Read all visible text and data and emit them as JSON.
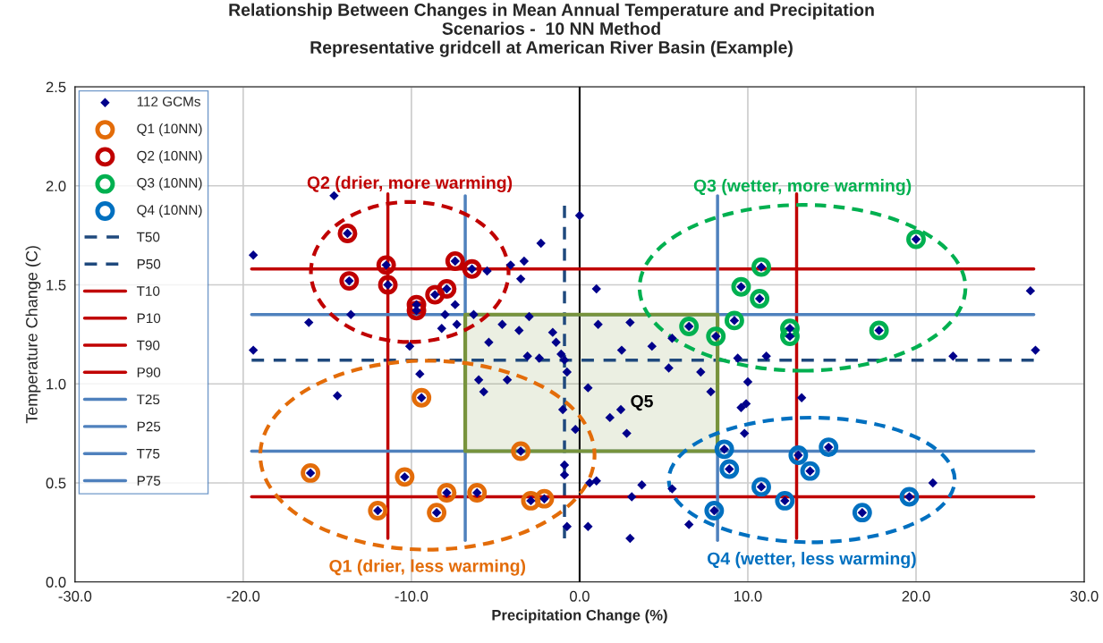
{
  "chart_data": {
    "type": "scatter",
    "title": "Relationship Between Changes in Mean Annual Temperature and Precipitation\nScenarios -  10 NN Method\nRepresentative gridcell at American River Basin (Example)",
    "xlabel": "Precipitation Change (%)",
    "ylabel": "Temperature Change (C)",
    "xlim": [
      -30,
      30
    ],
    "ylim": [
      0,
      2.5
    ],
    "xticks": [
      {
        "value": -30,
        "label": "-30.0"
      },
      {
        "value": -20,
        "label": "-20.0"
      },
      {
        "value": -10,
        "label": "-10.0"
      },
      {
        "value": 0,
        "label": "0.0"
      },
      {
        "value": 10,
        "label": "10.0"
      },
      {
        "value": 20,
        "label": "20.0"
      },
      {
        "value": 30,
        "label": "30.0"
      }
    ],
    "yticks": [
      {
        "value": 0,
        "label": "0.0"
      },
      {
        "value": 0.5,
        "label": "0.5"
      },
      {
        "value": 1,
        "label": "1.0"
      },
      {
        "value": 1.5,
        "label": "1.5"
      },
      {
        "value": 2,
        "label": "2.0"
      },
      {
        "value": 2.5,
        "label": "2.5"
      }
    ],
    "grid": true,
    "legend": "top left",
    "ref_lines": [
      {
        "axis": "x",
        "value": 0,
        "color": "#000000"
      }
    ],
    "series": [
      {
        "type": "area",
        "line_style": "solid",
        "color": "#77933c",
        "x": [
          -6.8,
          8.2,
          8.2,
          -6.8,
          -6.8
        ],
        "values": [
          0.66,
          0.66,
          1.35,
          1.35,
          0.66
        ]
      },
      {
        "name": "Q1 (10NN)",
        "marker": "circle",
        "color": "#e36c09",
        "x": [
          -16.0,
          -12.0,
          -10.4,
          -9.4,
          -8.5,
          -7.9,
          -6.1,
          -3.5,
          -2.9,
          -2.1
        ],
        "values": [
          0.55,
          0.36,
          0.53,
          0.93,
          0.35,
          0.45,
          0.45,
          0.66,
          0.41,
          0.42
        ]
      },
      {
        "name": "Q2 (10NN)",
        "marker": "circle",
        "color": "#c00000",
        "x": [
          -13.8,
          -13.7,
          -11.5,
          -11.4,
          -9.7,
          -9.7,
          -8.6,
          -7.9,
          -7.4,
          -6.4
        ],
        "values": [
          1.76,
          1.52,
          1.6,
          1.5,
          1.4,
          1.37,
          1.45,
          1.48,
          1.62,
          1.58
        ]
      },
      {
        "name": "Q3 (10NN)",
        "marker": "circle",
        "color": "#00b050",
        "x": [
          10.8,
          9.6,
          10.7,
          9.2,
          12.5,
          12.5,
          17.8,
          20.0,
          6.5,
          8.1
        ],
        "values": [
          1.59,
          1.49,
          1.43,
          1.32,
          1.28,
          1.24,
          1.27,
          1.73,
          1.29,
          1.24
        ]
      },
      {
        "name": "Q4 (10NN)",
        "marker": "circle",
        "color": "#0070c0",
        "x": [
          8.6,
          8.9,
          8.0,
          10.8,
          12.2,
          13.0,
          13.7,
          14.8,
          16.8,
          19.6
        ],
        "values": [
          0.67,
          0.57,
          0.36,
          0.48,
          0.41,
          0.64,
          0.56,
          0.68,
          0.35,
          0.43
        ]
      },
      {
        "name": "112 GCMs",
        "marker": "diamond",
        "color": "#00008b",
        "x": [
          -16.0,
          -12.0,
          -10.4,
          -9.4,
          -8.5,
          -7.9,
          -6.1,
          -3.5,
          -2.9,
          -2.1,
          -13.8,
          -13.7,
          -11.5,
          -11.4,
          -9.7,
          -9.7,
          -8.6,
          -7.9,
          -7.4,
          -6.4,
          10.8,
          9.6,
          10.7,
          9.2,
          12.5,
          12.5,
          17.8,
          20.0,
          6.5,
          8.1,
          8.6,
          8.9,
          8.0,
          10.8,
          12.2,
          13.0,
          13.7,
          14.8,
          16.8,
          19.6,
          -14.6,
          -19.4,
          -5.5,
          -4.1,
          -3.3,
          -2.3,
          -3.5,
          0.0,
          1.0,
          -7.4,
          -8.0,
          -13.6,
          -16.1,
          -8.2,
          -7.3,
          -6.3,
          -3.0,
          -10.1,
          -19.4,
          -9.5,
          -4.6,
          -3.6,
          -1.6,
          -5.4,
          -3.1,
          -2.4,
          -1.1,
          -1.4,
          -0.75,
          -6.0,
          -4.3,
          26.8,
          27.1,
          22.2,
          9.4,
          11.1,
          10.0,
          2.5,
          4.3,
          5.5,
          5.3,
          7.2,
          -14.4,
          -5.7,
          -1.0,
          -0.25,
          0.5,
          -0.9,
          -0.9,
          -0.9,
          0.6,
          1.0,
          -0.75,
          0.5,
          21.0,
          13.2,
          9.6,
          9.9,
          9.8,
          3.1,
          3.7,
          5.5,
          3.0,
          6.5,
          1.8,
          2.45,
          2.8,
          7.8,
          1.1,
          3.0
        ],
        "values": [
          0.55,
          0.36,
          0.53,
          0.93,
          0.35,
          0.45,
          0.45,
          0.66,
          0.41,
          0.42,
          1.76,
          1.52,
          1.6,
          1.5,
          1.4,
          1.37,
          1.45,
          1.48,
          1.62,
          1.58,
          1.59,
          1.49,
          1.43,
          1.32,
          1.28,
          1.24,
          1.27,
          1.73,
          1.29,
          1.24,
          0.67,
          0.57,
          0.36,
          0.48,
          0.41,
          0.64,
          0.56,
          0.68,
          0.35,
          0.43,
          1.95,
          1.65,
          1.57,
          1.6,
          1.62,
          1.71,
          1.53,
          1.85,
          1.48,
          1.4,
          1.35,
          1.35,
          1.31,
          1.28,
          1.3,
          1.35,
          1.34,
          1.19,
          1.17,
          1.05,
          1.3,
          1.27,
          1.26,
          1.21,
          1.14,
          1.13,
          1.15,
          1.21,
          1.06,
          1.02,
          1.02,
          1.47,
          1.17,
          1.14,
          1.13,
          1.14,
          1.01,
          1.17,
          1.19,
          1.23,
          1.08,
          1.06,
          0.94,
          0.96,
          0.87,
          0.77,
          0.98,
          1.12,
          0.59,
          0.54,
          0.5,
          0.51,
          0.28,
          0.28,
          0.5,
          0.93,
          0.88,
          0.9,
          0.75,
          0.43,
          0.49,
          0.47,
          0.22,
          0.29,
          0.83,
          0.87,
          0.75,
          0.96,
          1.3,
          1.31
        ]
      },
      {
        "name": "T50",
        "type": "line",
        "line_style": "dashed",
        "color": "#1f497d",
        "x": [
          -19.5,
          27.0
        ],
        "values": [
          1.12,
          1.12
        ]
      },
      {
        "name": "P50",
        "type": "line",
        "line_style": "dashed",
        "color": "#1f497d",
        "x": [
          -0.9,
          -0.9
        ],
        "values": [
          0.22,
          1.9
        ]
      },
      {
        "name": "T10",
        "type": "line",
        "line_style": "solid",
        "color": "#c00000",
        "x": [
          -19.5,
          27.0
        ],
        "values": [
          0.43,
          0.43
        ]
      },
      {
        "name": "P10",
        "type": "line",
        "line_style": "solid",
        "color": "#c00000",
        "x": [
          -11.4,
          -11.4
        ],
        "values": [
          0.22,
          1.96
        ]
      },
      {
        "name": "T90",
        "type": "line",
        "line_style": "solid",
        "color": "#c00000",
        "x": [
          -19.5,
          27.0
        ],
        "values": [
          1.58,
          1.58
        ]
      },
      {
        "name": "P90",
        "type": "line",
        "line_style": "solid",
        "color": "#c00000",
        "x": [
          12.9,
          12.9
        ],
        "values": [
          0.22,
          1.96
        ]
      },
      {
        "name": "T25",
        "type": "line",
        "line_style": "solid",
        "color": "#4f81bd",
        "x": [
          -19.5,
          27.0
        ],
        "values": [
          0.66,
          0.66
        ]
      },
      {
        "name": "P25",
        "type": "line",
        "line_style": "solid",
        "color": "#4f81bd",
        "x": [
          -6.8,
          -6.8
        ],
        "values": [
          0.21,
          1.95
        ]
      },
      {
        "name": "T75",
        "type": "line",
        "line_style": "solid",
        "color": "#4f81bd",
        "x": [
          -19.5,
          27.0
        ],
        "values": [
          1.35,
          1.35
        ]
      },
      {
        "name": "P75",
        "type": "line",
        "line_style": "solid",
        "color": "#4f81bd",
        "x": [
          8.2,
          8.2
        ],
        "values": [
          0.21,
          1.95
        ]
      }
    ],
    "annotations": [
      "Q1 (drier, less warming)",
      "Q2 (drier, more warming)",
      "Q3 (wetter, more warming)",
      "Q4 (wetter, less warming)",
      "Q5"
    ]
  }
}
